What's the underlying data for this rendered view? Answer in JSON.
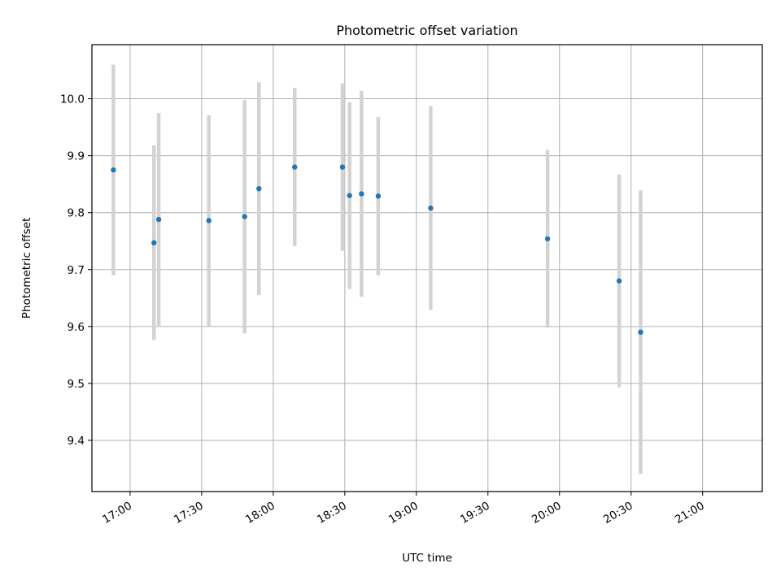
{
  "chart_data": {
    "type": "scatter",
    "title": "Photometric offset variation",
    "xlabel": "UTC time",
    "ylabel": "Photometric offset",
    "x_ticks": [
      "17:00",
      "17:30",
      "18:00",
      "18:30",
      "19:00",
      "19:30",
      "20:00",
      "20:30",
      "21:00"
    ],
    "y_ticks": [
      "9.4",
      "9.5",
      "9.6",
      "9.7",
      "9.8",
      "9.9",
      "10.0"
    ],
    "xlim": [
      "16:44",
      "21:25"
    ],
    "ylim": [
      9.31,
      10.095
    ],
    "grid": true,
    "colors": {
      "point": "#1f77b4",
      "errorbar": "#d3d3d3",
      "grid": "#b0b0b0"
    },
    "points": [
      {
        "x": "16:53",
        "y": 9.875,
        "yerr": 0.185
      },
      {
        "x": "17:10",
        "y": 9.747,
        "yerr": 0.171
      },
      {
        "x": "17:12",
        "y": 9.788,
        "yerr": 0.187
      },
      {
        "x": "17:33",
        "y": 9.786,
        "yerr": 0.185
      },
      {
        "x": "17:48",
        "y": 9.793,
        "yerr": 0.205
      },
      {
        "x": "17:54",
        "y": 9.842,
        "yerr": 0.187
      },
      {
        "x": "18:09",
        "y": 9.88,
        "yerr": 0.139
      },
      {
        "x": "18:29",
        "y": 9.88,
        "yerr": 0.147
      },
      {
        "x": "18:32",
        "y": 9.83,
        "yerr": 0.164
      },
      {
        "x": "18:37",
        "y": 9.833,
        "yerr": 0.181
      },
      {
        "x": "18:44",
        "y": 9.829,
        "yerr": 0.139
      },
      {
        "x": "19:06",
        "y": 9.808,
        "yerr": 0.179
      },
      {
        "x": "19:55",
        "y": 9.754,
        "yerr": 0.156
      },
      {
        "x": "20:25",
        "y": 9.68,
        "yerr": 0.187
      },
      {
        "x": "20:34",
        "y": 9.59,
        "yerr": 0.249
      }
    ]
  }
}
